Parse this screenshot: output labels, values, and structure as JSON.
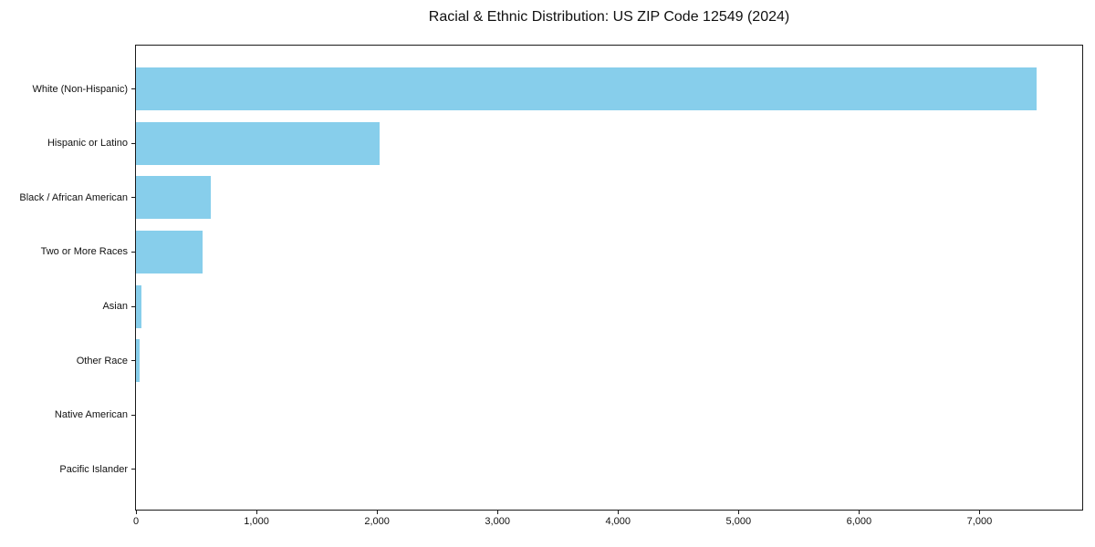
{
  "figure": {
    "background": "#ffffff"
  },
  "chart_data": {
    "type": "bar",
    "orientation": "horizontal",
    "title": "Racial & Ethnic Distribution: US ZIP Code 12549 (2024)",
    "categories": [
      "White (Non-Hispanic)",
      "Hispanic or Latino",
      "Black / African American",
      "Two or More Races",
      "Asian",
      "Other Race",
      "Native American",
      "Pacific Islander"
    ],
    "values": [
      7477,
      2019,
      620,
      553,
      48,
      33,
      0,
      0
    ],
    "bar_color": "#87CEEB",
    "xlabel": "",
    "ylabel": "",
    "xlim": [
      0,
      7860
    ],
    "x_ticks": [
      0,
      1000,
      2000,
      3000,
      4000,
      5000,
      6000,
      7000
    ],
    "x_tick_labels": [
      "0",
      "1,000",
      "2,000",
      "3,000",
      "4,000",
      "5,000",
      "6,000",
      "7,000"
    ],
    "grid": false,
    "legend": "none"
  }
}
